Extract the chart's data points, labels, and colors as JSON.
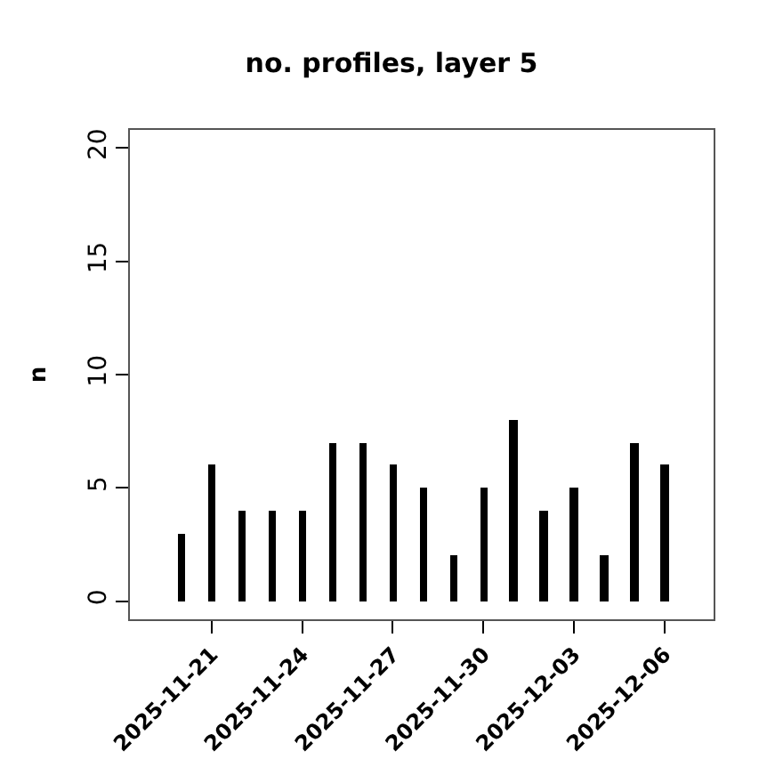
{
  "chart_data": {
    "type": "bar",
    "title": "no. profiles, layer 5",
    "ylabel": "n",
    "x": [
      "2025-11-20",
      "2025-11-21",
      "2025-11-22",
      "2025-11-23",
      "2025-11-24",
      "2025-11-25",
      "2025-11-26",
      "2025-11-27",
      "2025-11-28",
      "2025-11-29",
      "2025-11-30",
      "2025-12-01",
      "2025-12-02",
      "2025-12-03",
      "2025-12-04",
      "2025-12-05",
      "2025-12-06"
    ],
    "values": [
      3,
      6,
      4,
      4,
      4,
      7,
      7,
      6,
      5,
      2,
      5,
      8,
      4,
      5,
      2,
      7,
      6
    ],
    "color": "#000000",
    "xlim": [
      "2025-11-18T07:00",
      "2025-12-07T15:00"
    ],
    "xticks": [
      "2025-11-21",
      "2025-11-24",
      "2025-11-27",
      "2025-11-30",
      "2025-12-03",
      "2025-12-06"
    ],
    "ylim": [
      -0.8,
      20.8
    ],
    "yticks": [
      0,
      5,
      10,
      15,
      20
    ],
    "legend": false
  }
}
